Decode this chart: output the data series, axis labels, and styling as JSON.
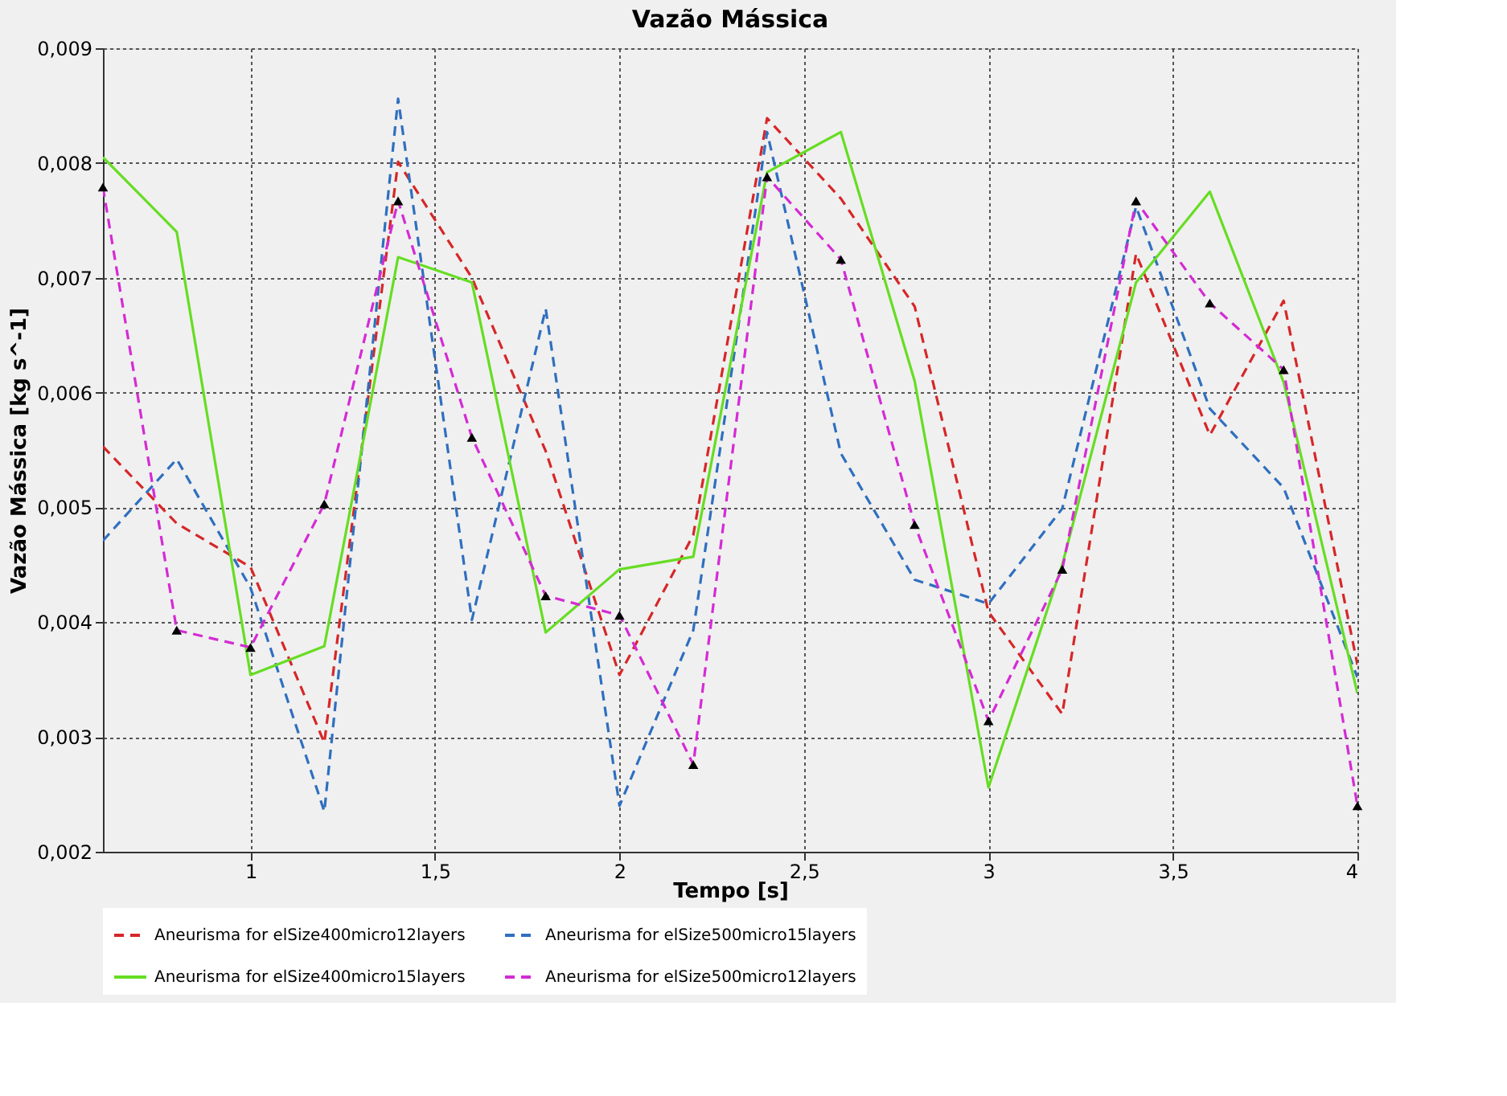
{
  "chart_data": {
    "type": "line",
    "title": "Vazão Mássica",
    "xlabel": "Tempo [s]",
    "ylabel": "Vazão Mássica [kg s^-1]",
    "x": [
      0.6,
      0.8,
      1.0,
      1.2,
      1.4,
      1.6,
      1.8,
      2.0,
      2.2,
      2.4,
      2.6,
      2.8,
      3.0,
      3.2,
      3.4,
      3.6,
      3.8,
      4.0
    ],
    "series": [
      {
        "name": "Aneurisma for elSize400micro12layers",
        "color": "#d62728",
        "line_style": "dashed",
        "values": [
          0.00553,
          0.00486,
          0.00448,
          0.00295,
          0.00801,
          0.007,
          0.00549,
          0.00354,
          0.00476,
          0.00839,
          0.00769,
          0.00675,
          0.00409,
          0.0032,
          0.00721,
          0.00563,
          0.0068,
          0.00363
        ]
      },
      {
        "name": "Aneurisma for elSize500micro15layers",
        "color": "#2f6fbf",
        "line_style": "dashed",
        "values": [
          0.00471,
          0.00542,
          0.0043,
          0.00235,
          0.00856,
          0.00402,
          0.00673,
          0.0024,
          0.00393,
          0.00827,
          0.00547,
          0.00437,
          0.00416,
          0.00499,
          0.00762,
          0.00586,
          0.00517,
          0.00352
        ]
      },
      {
        "name": "Aneurisma for elSize400micro15layers",
        "color": "#66dd22",
        "line_style": "solid",
        "values": [
          0.00805,
          0.0074,
          0.00354,
          0.00379,
          0.00718,
          0.00696,
          0.00391,
          0.00446,
          0.00457,
          0.00792,
          0.00827,
          0.0061,
          0.00256,
          0.0045,
          0.00696,
          0.00775,
          0.00609,
          0.00338
        ]
      },
      {
        "name": "Aneurisma for elSize500micro12layers",
        "color": "#d42bd4",
        "line_style": "dashed",
        "marker": "triangle",
        "values": [
          0.00779,
          0.00393,
          0.00378,
          0.00503,
          0.00767,
          0.00561,
          0.00423,
          0.00406,
          0.00276,
          0.00788,
          0.00716,
          0.00485,
          0.00314,
          0.00446,
          0.00767,
          0.00678,
          0.0062,
          0.0024
        ]
      }
    ],
    "xlim": [
      0.6,
      4
    ],
    "ylim": [
      0.002,
      0.009
    ],
    "xticks": [
      1,
      {
        "value": 1.5,
        "label": "1,5"
      },
      2,
      {
        "value": 2.5,
        "label": "2,5"
      },
      3,
      {
        "value": 3.5,
        "label": "3,5"
      },
      4
    ],
    "yticks": [
      {
        "value": 0.002,
        "label": "0,002"
      },
      {
        "value": 0.003,
        "label": "0,003"
      },
      {
        "value": 0.004,
        "label": "0,004"
      },
      {
        "value": 0.005,
        "label": "0,005"
      },
      {
        "value": 0.006,
        "label": "0,006"
      },
      {
        "value": 0.007,
        "label": "0,007"
      },
      {
        "value": 0.008,
        "label": "0,008"
      },
      {
        "value": 0.009,
        "label": "0,009"
      }
    ],
    "grid": true,
    "legend": "bottom"
  }
}
